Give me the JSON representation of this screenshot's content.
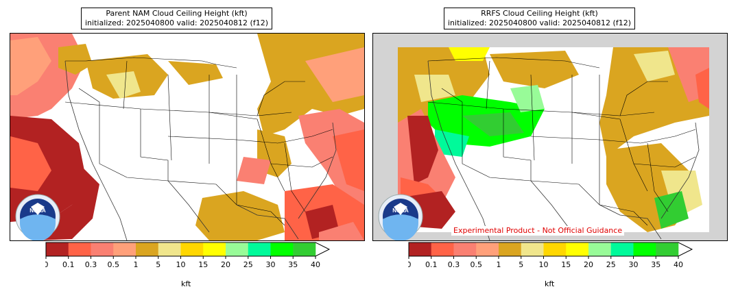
{
  "panels": [
    {
      "title_line1": "Parent NAM Cloud Ceiling Height (kft)",
      "title_line2": "initialized: 2025040800 valid: 2025040812 (f12)"
    },
    {
      "title_line1": "RRFS Cloud Ceiling Height (kft)",
      "title_line2": "initialized: 2025040800 valid: 2025040812 (f12)",
      "banner": "Experimental Product - Not Official Guidance"
    }
  ],
  "logo_text": "NOAA",
  "colorbar": {
    "unit_label": "kft",
    "ticks": [
      "0",
      "0.1",
      "0.3",
      "0.5",
      "1",
      "5",
      "10",
      "15",
      "20",
      "25",
      "30",
      "35",
      "40"
    ],
    "colors": [
      "#b22222",
      "#ff6347",
      "#fa8072",
      "#ffa07a",
      "#daa520",
      "#f0e68c",
      "#ffd700",
      "#ffff00",
      "#98fb98",
      "#00fa9a",
      "#00ff00",
      "#32cd32"
    ]
  },
  "colors": {
    "out_of_domain": "#d3d3d3",
    "ocean_clear": "#ffffff",
    "border": "#000000"
  }
}
